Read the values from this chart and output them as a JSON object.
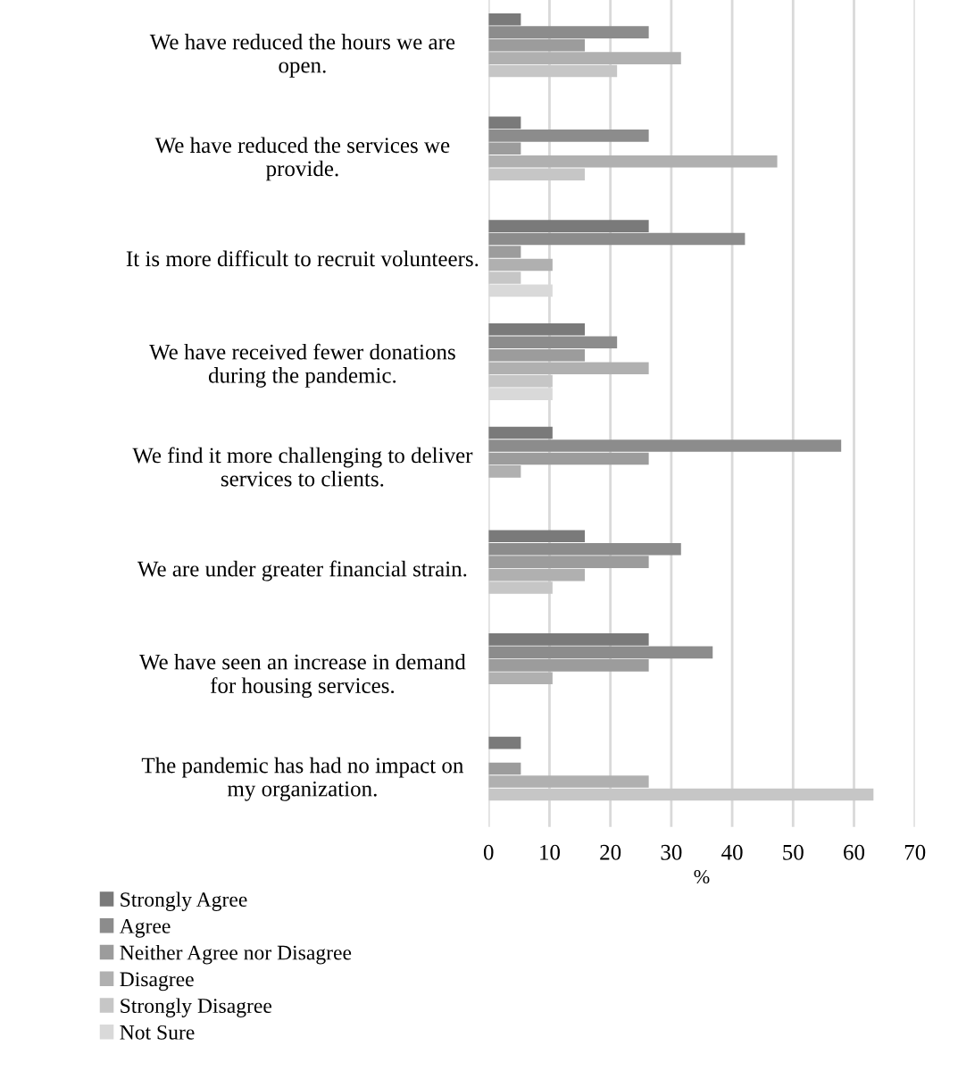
{
  "chart_data": {
    "type": "bar",
    "orientation": "horizontal",
    "xlabel": "%",
    "categories": [
      "We have reduced the hours we are\nopen.",
      "We have reduced the services we\nprovide.",
      "It is more difficult to recruit volunteers.",
      "We have received fewer donations\nduring the pandemic.",
      "We find it more challenging to deliver\nservices to clients.",
      "We are under greater financial strain.",
      "We have seen an increase in demand\nfor housing services.",
      "The pandemic has had no impact on\nmy organization."
    ],
    "series": [
      {
        "name": "Strongly Agree",
        "color": "#7a7a7a",
        "values": [
          5.3,
          5.3,
          26.3,
          15.8,
          10.5,
          15.8,
          26.3,
          5.3
        ]
      },
      {
        "name": "Agree",
        "color": "#8c8c8c",
        "values": [
          26.3,
          26.3,
          42.1,
          21.1,
          57.9,
          31.6,
          36.8,
          null
        ]
      },
      {
        "name": "Neither Agree nor Disagree",
        "color": "#9c9c9c",
        "values": [
          15.8,
          5.3,
          5.3,
          15.8,
          26.3,
          26.3,
          26.3,
          5.3
        ]
      },
      {
        "name": "Disagree",
        "color": "#b0b0b0",
        "values": [
          31.6,
          47.4,
          10.5,
          26.3,
          5.3,
          15.8,
          10.5,
          26.3
        ]
      },
      {
        "name": "Strongly Disagree",
        "color": "#c6c6c6",
        "values": [
          21.1,
          15.8,
          5.3,
          10.5,
          null,
          10.5,
          null,
          63.2
        ]
      },
      {
        "name": "Not Sure",
        "color": "#d9d9d9",
        "values": [
          null,
          null,
          10.5,
          10.5,
          null,
          null,
          null,
          null
        ]
      }
    ],
    "xlim": [
      0,
      70
    ],
    "xticks": [
      0,
      10,
      20,
      30,
      40,
      50,
      60,
      70
    ],
    "grid": "x",
    "legend": "bottom left"
  }
}
